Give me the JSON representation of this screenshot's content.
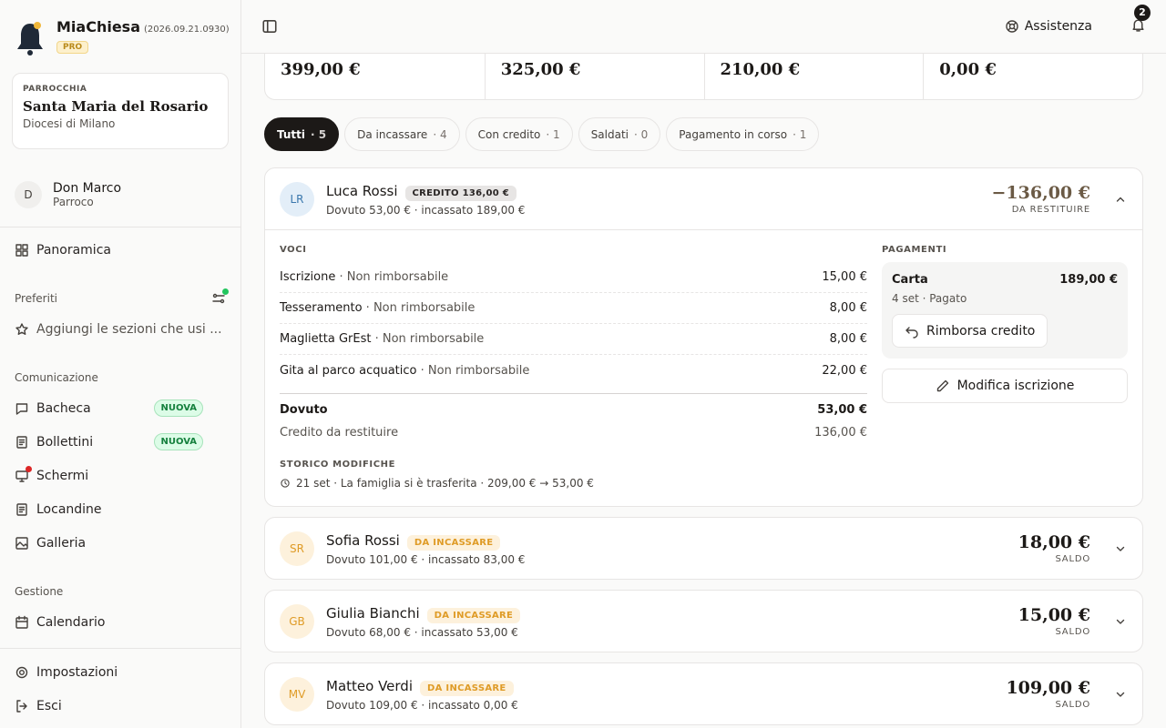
{
  "app": {
    "name": "MiaChiesa",
    "version": "(2026.09.21.0930)",
    "badge": "PRO"
  },
  "parish": {
    "label": "PARROCCHIA",
    "name": "Santa Maria del Rosario",
    "diocese": "Diocesi di Milano"
  },
  "user": {
    "initial": "D",
    "name": "Don Marco",
    "role": "Parroco"
  },
  "nav": {
    "overview": "Panoramica",
    "favorites_title": "Preferiti",
    "favorites_hint": "Aggiungi le sezioni che usi ...",
    "sections": [
      {
        "title": "Comunicazione",
        "items": [
          {
            "label": "Bacheca",
            "badge": "NUOVA"
          },
          {
            "label": "Bollettini",
            "badge": "NUOVA"
          },
          {
            "label": "Schermi"
          },
          {
            "label": "Locandine"
          },
          {
            "label": "Galleria"
          }
        ]
      },
      {
        "title": "Gestione",
        "items": [
          {
            "label": "Calendario"
          }
        ]
      }
    ],
    "footer": [
      "Impostazioni",
      "Esci"
    ]
  },
  "topbar": {
    "help": "Assistenza",
    "notifications": 2
  },
  "summary": [
    "399,00 €",
    "325,00 €",
    "210,00 €",
    "0,00 €"
  ],
  "filters": [
    {
      "label": "Tutti",
      "count": 5
    },
    {
      "label": "Da incassare",
      "count": 4
    },
    {
      "label": "Con credito",
      "count": 1
    },
    {
      "label": "Saldati",
      "count": 0
    },
    {
      "label": "Pagamento in corso",
      "count": 1
    }
  ],
  "members": [
    {
      "initials": "LR",
      "name": "Luca Rossi",
      "badge": "CREDITO 136,00 €",
      "subtitle": "Dovuto 53,00 € · incassato 189,00 €",
      "amount": "−136,00 €",
      "amount_label": "DA RESTITUIRE",
      "detail": {
        "items_title": "VOCI",
        "items": [
          {
            "name": "Iscrizione",
            "note": "Non rimborsabile",
            "amount": "15,00 €"
          },
          {
            "name": "Tesseramento",
            "note": "Non rimborsabile",
            "amount": "8,00 €"
          },
          {
            "name": "Maglietta GrEst",
            "note": "Non rimborsabile",
            "amount": "8,00 €"
          },
          {
            "name": "Gita al parco acquatico",
            "note": "Non rimborsabile",
            "amount": "22,00 €"
          }
        ],
        "total_label": "Dovuto",
        "total": "53,00 €",
        "credit_label": "Credito da restituire",
        "credit": "136,00 €",
        "history_title": "STORICO MODIFICHE",
        "history": [
          "21 set · La famiglia si è trasferita · 209,00 € → 53,00 €"
        ],
        "payments_title": "PAGAMENTI",
        "payments": [
          {
            "method": "Carta",
            "amount": "189,00 €",
            "detail": "4 set · Pagato",
            "action": "Rimborsa credito"
          }
        ],
        "edit": "Modifica iscrizione"
      }
    },
    {
      "initials": "SR",
      "name": "Sofia Rossi",
      "badge": "DA INCASSARE",
      "subtitle": "Dovuto 101,00 € · incassato 83,00 €",
      "amount": "18,00 €",
      "amount_label": "SALDO"
    },
    {
      "initials": "GB",
      "name": "Giulia Bianchi",
      "badge": "DA INCASSARE",
      "subtitle": "Dovuto 68,00 € · incassato 53,00 €",
      "amount": "15,00 €",
      "amount_label": "SALDO"
    },
    {
      "initials": "MV",
      "name": "Matteo Verdi",
      "badge": "DA INCASSARE",
      "subtitle": "Dovuto 109,00 € · incassato 0,00 €",
      "amount": "109,00 €",
      "amount_label": "SALDO"
    }
  ]
}
